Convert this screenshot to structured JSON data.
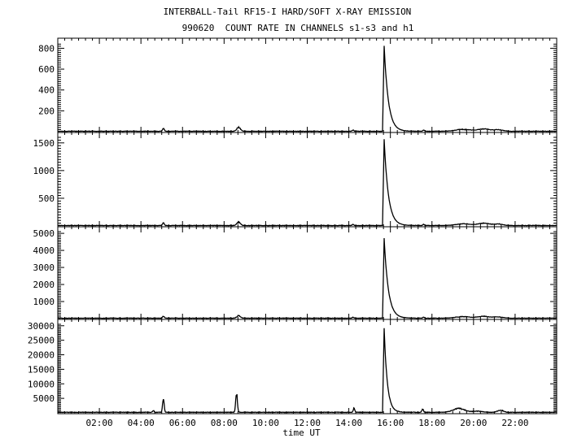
{
  "chart_data": {
    "type": "line",
    "title": "INTERBALL-Tail RF15-I HARD/SOFT X-RAY EMISSION",
    "subtitle": "990620  COUNT RATE IN CHANNELS s1-s3 and h1",
    "xlabel": "time UT",
    "x_unit": "hours UT",
    "xlim": [
      0,
      24
    ],
    "x_ticks": [
      2,
      4,
      6,
      8,
      10,
      12,
      14,
      16,
      18,
      20,
      22
    ],
    "x_tick_labels": [
      "02:00",
      "04:00",
      "06:00",
      "08:00",
      "10:00",
      "12:00",
      "14:00",
      "16:00",
      "18:00",
      "20:00",
      "22:00"
    ],
    "panels": [
      {
        "channel": "s1",
        "ylim": [
          0,
          850
        ],
        "y_ticks": [
          200,
          400,
          600,
          800
        ],
        "y_tick_labels": [
          "200",
          "400",
          "600",
          "800"
        ],
        "baseline": 4,
        "events": [
          {
            "x": 5.08,
            "y": 28,
            "w": 0.06
          },
          {
            "x": 8.7,
            "y": 38,
            "w": 0.12
          },
          {
            "x": 14.2,
            "y": 12,
            "w": 0.05
          },
          {
            "x": 15.7,
            "y": 820,
            "decay": 0.2
          },
          {
            "x": 17.6,
            "y": 12,
            "w": 0.05
          },
          {
            "x": 19.5,
            "y": 18,
            "w": 0.5
          },
          {
            "x": 20.5,
            "y": 22,
            "w": 0.4
          },
          {
            "x": 21.2,
            "y": 14,
            "w": 0.3
          }
        ]
      },
      {
        "channel": "s2",
        "ylim": [
          0,
          1600
        ],
        "y_ticks": [
          500,
          1000,
          1500
        ],
        "y_tick_labels": [
          "500",
          "1000",
          "1500"
        ],
        "baseline": 8,
        "events": [
          {
            "x": 5.08,
            "y": 45,
            "w": 0.06
          },
          {
            "x": 8.7,
            "y": 60,
            "w": 0.12
          },
          {
            "x": 14.2,
            "y": 20,
            "w": 0.05
          },
          {
            "x": 15.7,
            "y": 1560,
            "decay": 0.2
          },
          {
            "x": 17.6,
            "y": 20,
            "w": 0.05
          },
          {
            "x": 19.5,
            "y": 30,
            "w": 0.5
          },
          {
            "x": 20.5,
            "y": 40,
            "w": 0.4
          },
          {
            "x": 21.2,
            "y": 25,
            "w": 0.3
          }
        ]
      },
      {
        "channel": "s3",
        "ylim": [
          0,
          5100
        ],
        "y_ticks": [
          1000,
          2000,
          3000,
          4000,
          5000
        ],
        "y_tick_labels": [
          "1000",
          "2000",
          "3000",
          "4000",
          "5000"
        ],
        "baseline": 25,
        "events": [
          {
            "x": 5.08,
            "y": 110,
            "w": 0.06
          },
          {
            "x": 8.7,
            "y": 150,
            "w": 0.12
          },
          {
            "x": 14.2,
            "y": 60,
            "w": 0.05
          },
          {
            "x": 15.7,
            "y": 4700,
            "decay": 0.2
          },
          {
            "x": 17.6,
            "y": 60,
            "w": 0.05
          },
          {
            "x": 19.5,
            "y": 90,
            "w": 0.5
          },
          {
            "x": 20.5,
            "y": 110,
            "w": 0.4
          },
          {
            "x": 21.2,
            "y": 70,
            "w": 0.3
          }
        ]
      },
      {
        "channel": "h1",
        "ylim": [
          0,
          30500
        ],
        "y_ticks": [
          5000,
          10000,
          15000,
          20000,
          25000,
          30000
        ],
        "y_tick_labels": [
          "5000",
          "10000",
          "15000",
          "20000",
          "25000",
          "30000"
        ],
        "baseline": 200,
        "events": [
          {
            "x": 4.6,
            "y": 600,
            "w": 0.05
          },
          {
            "x": 5.08,
            "y": 5200,
            "w": 0.05
          },
          {
            "x": 8.6,
            "y": 6000,
            "w": 0.06
          },
          {
            "x": 14.25,
            "y": 1500,
            "w": 0.05
          },
          {
            "x": 15.7,
            "y": 29000,
            "decay": 0.15
          },
          {
            "x": 17.55,
            "y": 1000,
            "w": 0.06
          },
          {
            "x": 19.3,
            "y": 1300,
            "w": 0.4
          },
          {
            "x": 20.2,
            "y": 400,
            "w": 0.3
          },
          {
            "x": 21.3,
            "y": 700,
            "w": 0.2
          }
        ]
      }
    ]
  }
}
